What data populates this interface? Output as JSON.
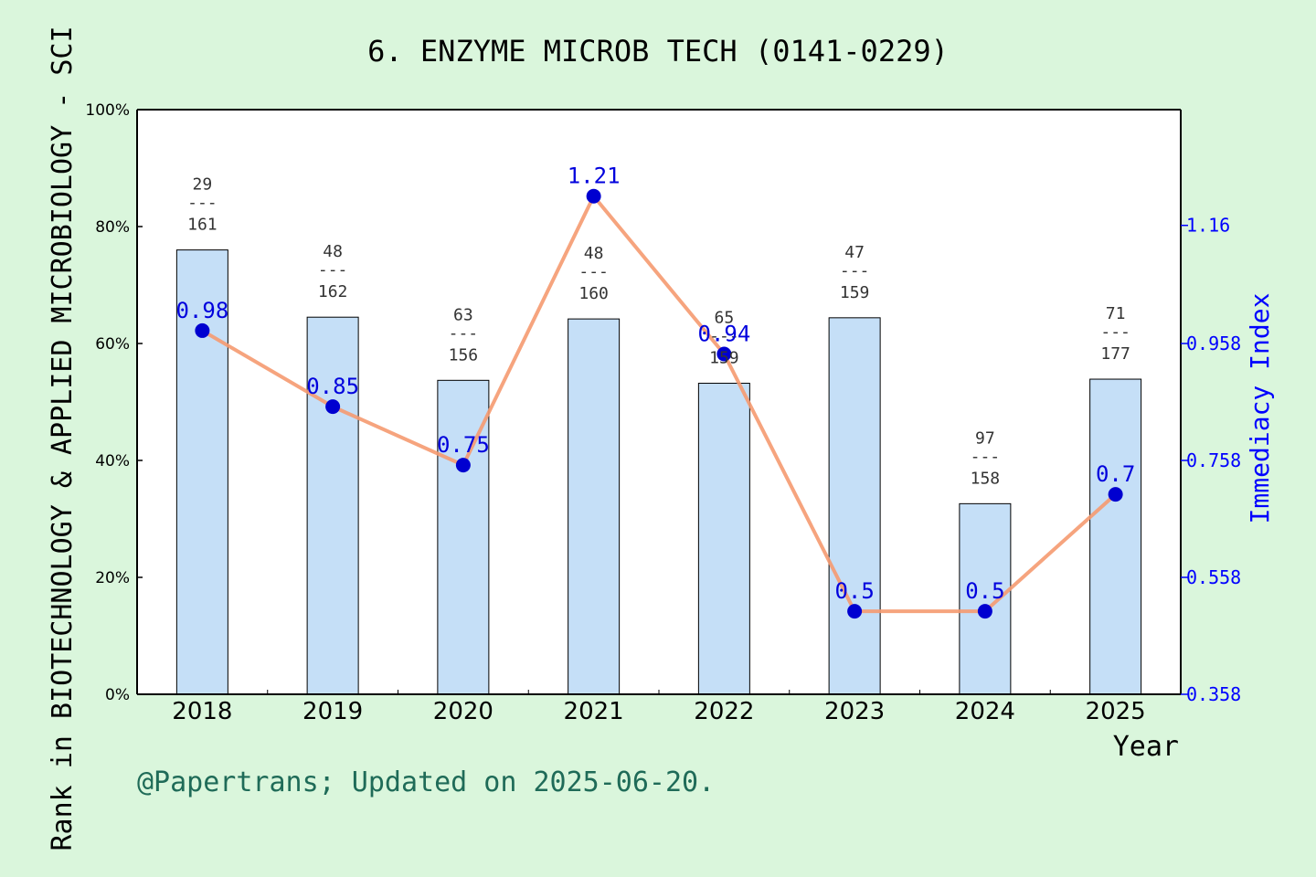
{
  "title": "6. ENZYME MICROB TECH (0141-0229)",
  "footer": "@Papertrans; Updated on 2025-06-20.",
  "chart_data": {
    "type": "bar",
    "title": "6. ENZYME MICROB TECH (0141-0229)",
    "xlabel": "Year",
    "ylabel": "Rank in BIOTECHNOLOGY & APPLIED MICROBIOLOGY - SCI",
    "y2label": "Immediacy Index",
    "categories": [
      "2018",
      "2019",
      "2020",
      "2021",
      "2022",
      "2023",
      "2024",
      "2025"
    ],
    "y_ticks": [
      "0%",
      "20%",
      "40%",
      "60%",
      "80%",
      "100%"
    ],
    "ylim": [
      0,
      100
    ],
    "y2_ticks": [
      "0.358",
      "0.558",
      "0.758",
      "0.958",
      "1.16"
    ],
    "y2lim": [
      0.358,
      1.358
    ],
    "bars": {
      "values": [
        76,
        64.5,
        53.7,
        64.2,
        53.2,
        64.4,
        32.6,
        53.9
      ],
      "rank": [
        "29",
        "48",
        "63",
        "48",
        "65",
        "47",
        "97",
        "71"
      ],
      "total": [
        "161",
        "162",
        "156",
        "160",
        "159",
        "159",
        "158",
        "177"
      ],
      "separator": "---",
      "color": "#c5dff7"
    },
    "line": {
      "values": [
        0.98,
        0.85,
        0.75,
        1.21,
        0.94,
        0.5,
        0.5,
        0.7
      ],
      "labels": [
        "0.98",
        "0.85",
        "0.75",
        "1.21",
        "0.94",
        "0.5",
        "0.5",
        "0.7"
      ],
      "line_color": "#f59a70",
      "marker_color": "#0000d0"
    },
    "grid": false,
    "colors": {
      "background": "#daf6dc",
      "plot_bg": "#ffffff",
      "secondary_axis": "#0000ff",
      "footer": "#1f6b58"
    }
  }
}
